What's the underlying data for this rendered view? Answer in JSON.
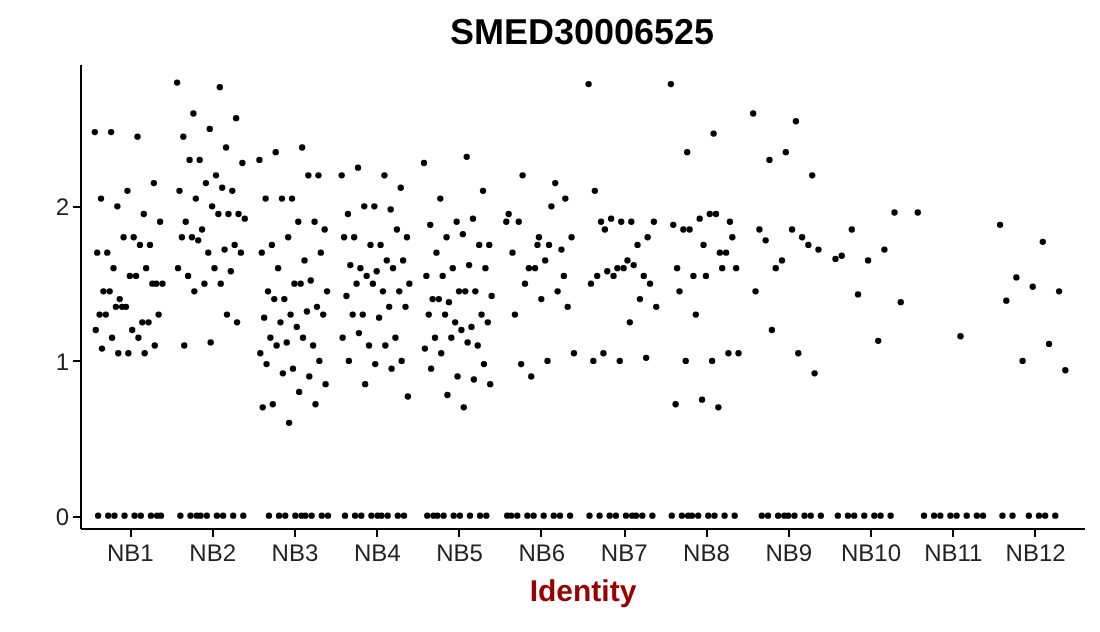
{
  "chart_data": {
    "type": "scatter",
    "title": "SMED30006525",
    "xlabel": "Identity",
    "categories": [
      "NB1",
      "NB2",
      "NB3",
      "NB4",
      "NB5",
      "NB6",
      "NB7",
      "NB8",
      "NB9",
      "NB10",
      "NB11",
      "NB12"
    ],
    "ylim": [
      -0.08,
      2.92
    ],
    "yticks": [
      0,
      1,
      2
    ],
    "marker": "circle",
    "series": [
      {
        "color": "#000000",
        "x": [
          "NB1",
          "NB1",
          "NB1",
          "NB1",
          "NB1",
          "NB1",
          "NB1",
          "NB1",
          "NB1",
          "NB1",
          "NB1",
          "NB1",
          "NB1",
          "NB1",
          "NB1",
          "NB1",
          "NB1",
          "NB1",
          "NB1",
          "NB1",
          "NB1",
          "NB1",
          "NB1",
          "NB1",
          "NB1",
          "NB1",
          "NB1",
          "NB1",
          "NB1",
          "NB1",
          "NB1",
          "NB1",
          "NB1",
          "NB1",
          "NB1",
          "NB1",
          "NB1",
          "NB1",
          "NB1",
          "NB1",
          "NB1",
          "NB1",
          "NB1",
          "NB1",
          "NB1",
          "NB1",
          "NB1",
          "NB1",
          "NB1",
          "NB1",
          "NB1"
        ],
        "values": [
          2.48,
          2.45,
          2.48,
          2.15,
          2.1,
          2.05,
          1.95,
          2.0,
          1.9,
          1.8,
          1.7,
          1.75,
          1.8,
          1.7,
          1.75,
          1.6,
          1.5,
          1.55,
          1.45,
          1.6,
          1.4,
          1.5,
          1.55,
          1.45,
          1.5,
          1.35,
          1.3,
          1.25,
          1.35,
          1.3,
          1.2,
          1.3,
          1.25,
          1.35,
          1.2,
          1.15,
          1.15,
          1.1,
          1.05,
          1.08,
          1.05,
          1.05,
          0,
          0,
          0,
          0,
          0,
          0,
          0,
          0,
          0
        ]
      },
      {
        "color": "#000000",
        "x": [
          "NB2",
          "NB2",
          "NB2",
          "NB2",
          "NB2",
          "NB2",
          "NB2",
          "NB2",
          "NB2",
          "NB2",
          "NB2",
          "NB2",
          "NB2",
          "NB2",
          "NB2",
          "NB2",
          "NB2",
          "NB2",
          "NB2",
          "NB2",
          "NB2",
          "NB2",
          "NB2",
          "NB2",
          "NB2",
          "NB2",
          "NB2",
          "NB2",
          "NB2",
          "NB2",
          "NB2",
          "NB2",
          "NB2",
          "NB2",
          "NB2",
          "NB2",
          "NB2",
          "NB2",
          "NB2",
          "NB2",
          "NB2",
          "NB2",
          "NB2",
          "NB2",
          "NB2",
          "NB2",
          "NB2",
          "NB2",
          "NB2",
          "NB2"
        ],
        "values": [
          2.8,
          2.77,
          2.6,
          2.57,
          2.5,
          2.45,
          2.38,
          2.3,
          2.28,
          2.2,
          2.3,
          2.1,
          2.15,
          2.1,
          2.12,
          2.05,
          1.95,
          2.0,
          1.9,
          1.95,
          1.85,
          1.92,
          1.95,
          1.8,
          1.75,
          1.7,
          1.8,
          1.72,
          1.78,
          1.7,
          1.6,
          1.55,
          1.58,
          1.5,
          1.6,
          1.5,
          1.45,
          1.25,
          1.12,
          1.1,
          1.3,
          0,
          0,
          0,
          0,
          0,
          0,
          0,
          0,
          0
        ]
      },
      {
        "color": "#000000",
        "x": [
          "NB3",
          "NB3",
          "NB3",
          "NB3",
          "NB3",
          "NB3",
          "NB3",
          "NB3",
          "NB3",
          "NB3",
          "NB3",
          "NB3",
          "NB3",
          "NB3",
          "NB3",
          "NB3",
          "NB3",
          "NB3",
          "NB3",
          "NB3",
          "NB3",
          "NB3",
          "NB3",
          "NB3",
          "NB3",
          "NB3",
          "NB3",
          "NB3",
          "NB3",
          "NB3",
          "NB3",
          "NB3",
          "NB3",
          "NB3",
          "NB3",
          "NB3",
          "NB3",
          "NB3",
          "NB3",
          "NB3",
          "NB3",
          "NB3",
          "NB3",
          "NB3",
          "NB3",
          "NB3",
          "NB3",
          "NB3",
          "NB3",
          "NB3",
          "NB3",
          "NB3",
          "NB3",
          "NB3",
          "NB3",
          "NB3",
          "NB3"
        ],
        "values": [
          2.3,
          2.38,
          2.35,
          2.2,
          2.05,
          2.05,
          2.2,
          2.05,
          1.85,
          1.9,
          1.75,
          1.9,
          1.8,
          1.7,
          1.65,
          1.6,
          1.7,
          1.5,
          1.45,
          1.52,
          1.4,
          1.45,
          1.5,
          1.4,
          1.35,
          1.3,
          1.28,
          1.32,
          1.25,
          1.3,
          1.22,
          1.15,
          1.1,
          1.12,
          1.05,
          1.15,
          1.1,
          1.0,
          0.95,
          0.98,
          0.9,
          0.92,
          0.85,
          0.8,
          0.72,
          0.72,
          0.6,
          0.7,
          0,
          0,
          0,
          0,
          0,
          0,
          0,
          0,
          0
        ]
      },
      {
        "color": "#000000",
        "x": [
          "NB4",
          "NB4",
          "NB4",
          "NB4",
          "NB4",
          "NB4",
          "NB4",
          "NB4",
          "NB4",
          "NB4",
          "NB4",
          "NB4",
          "NB4",
          "NB4",
          "NB4",
          "NB4",
          "NB4",
          "NB4",
          "NB4",
          "NB4",
          "NB4",
          "NB4",
          "NB4",
          "NB4",
          "NB4",
          "NB4",
          "NB4",
          "NB4",
          "NB4",
          "NB4",
          "NB4",
          "NB4",
          "NB4",
          "NB4",
          "NB4",
          "NB4",
          "NB4",
          "NB4",
          "NB4",
          "NB4",
          "NB4",
          "NB4",
          "NB4",
          "NB4",
          "NB4",
          "NB4",
          "NB4",
          "NB4",
          "NB4",
          "NB4",
          "NB4",
          "NB4"
        ],
        "values": [
          2.2,
          2.2,
          2.25,
          2.12,
          2.0,
          1.95,
          1.98,
          2.0,
          1.8,
          1.75,
          1.8,
          1.85,
          1.75,
          1.8,
          1.65,
          1.6,
          1.65,
          1.58,
          1.62,
          1.6,
          1.55,
          1.5,
          1.45,
          1.5,
          1.45,
          1.5,
          1.42,
          1.35,
          1.3,
          1.35,
          1.28,
          1.3,
          1.15,
          1.1,
          1.15,
          1.1,
          1.18,
          1.0,
          0.98,
          1.0,
          0.95,
          0.85,
          0.77,
          0,
          0,
          0,
          0,
          0,
          0,
          0,
          0,
          0
        ]
      },
      {
        "color": "#000000",
        "x": [
          "NB5",
          "NB5",
          "NB5",
          "NB5",
          "NB5",
          "NB5",
          "NB5",
          "NB5",
          "NB5",
          "NB5",
          "NB5",
          "NB5",
          "NB5",
          "NB5",
          "NB5",
          "NB5",
          "NB5",
          "NB5",
          "NB5",
          "NB5",
          "NB5",
          "NB5",
          "NB5",
          "NB5",
          "NB5",
          "NB5",
          "NB5",
          "NB5",
          "NB5",
          "NB5",
          "NB5",
          "NB5",
          "NB5",
          "NB5",
          "NB5",
          "NB5",
          "NB5",
          "NB5",
          "NB5",
          "NB5",
          "NB5",
          "NB5",
          "NB5",
          "NB5",
          "NB5",
          "NB5",
          "NB5",
          "NB5",
          "NB5",
          "NB5",
          "NB5",
          "NB5",
          "NB5"
        ],
        "values": [
          2.28,
          2.32,
          2.05,
          2.1,
          1.9,
          1.88,
          1.92,
          1.8,
          1.75,
          1.82,
          1.7,
          1.75,
          1.6,
          1.55,
          1.62,
          1.55,
          1.6,
          1.45,
          1.4,
          1.45,
          1.38,
          1.42,
          1.45,
          1.4,
          1.3,
          1.25,
          1.3,
          1.22,
          1.3,
          1.25,
          1.2,
          1.15,
          1.1,
          1.15,
          1.08,
          1.12,
          1.05,
          0.98,
          0.9,
          0.95,
          0.88,
          0.78,
          0.85,
          0.7,
          0,
          0,
          0,
          0,
          0,
          0,
          0,
          0,
          0
        ]
      },
      {
        "color": "#000000",
        "x": [
          "NB6",
          "NB6",
          "NB6",
          "NB6",
          "NB6",
          "NB6",
          "NB6",
          "NB6",
          "NB6",
          "NB6",
          "NB6",
          "NB6",
          "NB6",
          "NB6",
          "NB6",
          "NB6",
          "NB6",
          "NB6",
          "NB6",
          "NB6",
          "NB6",
          "NB6",
          "NB6",
          "NB6",
          "NB6",
          "NB6",
          "NB6",
          "NB6",
          "NB6",
          "NB6",
          "NB6",
          "NB6",
          "NB6",
          "NB6",
          "NB6"
        ],
        "values": [
          1.9,
          1.75,
          2.2,
          2.05,
          1.8,
          1.7,
          2.15,
          1.6,
          1.8,
          1.65,
          1.9,
          1.72,
          1.6,
          1.95,
          2.0,
          1.5,
          1.35,
          1.4,
          1.3,
          1.45,
          0.9,
          1.05,
          1.0,
          0.98,
          1.55,
          1.75,
          0,
          0,
          0,
          0,
          0,
          0,
          0,
          0,
          0
        ]
      },
      {
        "color": "#000000",
        "x": [
          "NB7",
          "NB7",
          "NB7",
          "NB7",
          "NB7",
          "NB7",
          "NB7",
          "NB7",
          "NB7",
          "NB7",
          "NB7",
          "NB7",
          "NB7",
          "NB7",
          "NB7",
          "NB7",
          "NB7",
          "NB7",
          "NB7",
          "NB7",
          "NB7",
          "NB7",
          "NB7",
          "NB7",
          "NB7",
          "NB7",
          "NB7",
          "NB7",
          "NB7",
          "NB7",
          "NB7",
          "NB7",
          "NB7",
          "NB7",
          "NB7",
          "NB7"
        ],
        "values": [
          2.79,
          1.9,
          1.85,
          1.8,
          1.9,
          2.1,
          1.75,
          1.92,
          1.9,
          1.65,
          1.9,
          1.55,
          1.6,
          1.5,
          1.62,
          1.58,
          1.5,
          1.6,
          1.55,
          1.4,
          1.55,
          1.35,
          1.25,
          1.05,
          1.02,
          1.0,
          1.0,
          0,
          0,
          0,
          0,
          0,
          0,
          0,
          0,
          0
        ]
      },
      {
        "color": "#000000",
        "x": [
          "NB8",
          "NB8",
          "NB8",
          "NB8",
          "NB8",
          "NB8",
          "NB8",
          "NB8",
          "NB8",
          "NB8",
          "NB8",
          "NB8",
          "NB8",
          "NB8",
          "NB8",
          "NB8",
          "NB8",
          "NB8",
          "NB8",
          "NB8",
          "NB8",
          "NB8",
          "NB8",
          "NB8",
          "NB8",
          "NB8",
          "NB8",
          "NB8",
          "NB8",
          "NB8",
          "NB8",
          "NB8",
          "NB8",
          "NB8",
          "NB8",
          "NB8",
          "NB8"
        ],
        "values": [
          2.79,
          2.47,
          2.35,
          1.9,
          1.75,
          1.6,
          1.7,
          1.55,
          1.6,
          1.95,
          1.85,
          1.7,
          1.92,
          1.88,
          1.95,
          1.85,
          1.8,
          1.55,
          1.45,
          1.6,
          1.3,
          1.05,
          1.0,
          1.0,
          1.05,
          0.75,
          0.72,
          0.7,
          0,
          0,
          0,
          0,
          0,
          0,
          0,
          0,
          0
        ]
      },
      {
        "color": "#000000",
        "x": [
          "NB9",
          "NB9",
          "NB9",
          "NB9",
          "NB9",
          "NB9",
          "NB9",
          "NB9",
          "NB9",
          "NB9",
          "NB9",
          "NB9",
          "NB9",
          "NB9",
          "NB9",
          "NB9",
          "NB9",
          "NB9",
          "NB9",
          "NB9",
          "NB9",
          "NB9",
          "NB9",
          "NB9",
          "NB9",
          "NB9"
        ],
        "values": [
          2.6,
          2.55,
          2.3,
          2.2,
          2.35,
          1.85,
          1.8,
          1.6,
          1.72,
          1.85,
          1.78,
          1.75,
          1.65,
          1.45,
          1.05,
          1.2,
          0.92,
          0,
          0,
          0,
          0,
          0,
          0,
          0,
          0,
          0
        ]
      },
      {
        "color": "#000000",
        "x": [
          "NB10",
          "NB10",
          "NB10",
          "NB10",
          "NB10",
          "NB10",
          "NB10",
          "NB10",
          "NB10",
          "NB10",
          "NB10",
          "NB10",
          "NB10",
          "NB10",
          "NB10",
          "NB10"
        ],
        "values": [
          1.66,
          1.13,
          1.85,
          1.96,
          1.65,
          1.68,
          1.72,
          1.43,
          1.38,
          0,
          0,
          0,
          0,
          0,
          0,
          0
        ]
      },
      {
        "color": "#000000",
        "x": [
          "NB11",
          "NB11",
          "NB11",
          "NB11",
          "NB11",
          "NB11",
          "NB11",
          "NB11",
          "NB11",
          "NB11"
        ],
        "values": [
          1.96,
          1.16,
          0,
          0,
          0,
          0,
          0,
          0,
          0,
          0
        ]
      },
      {
        "color": "#000000",
        "x": [
          "NB12",
          "NB12",
          "NB12",
          "NB12",
          "NB12",
          "NB12",
          "NB12",
          "NB12",
          "NB12",
          "NB12",
          "NB12",
          "NB12",
          "NB12",
          "NB12",
          "NB12"
        ],
        "values": [
          1.88,
          1.77,
          1.54,
          1.45,
          1.48,
          1.39,
          1.11,
          1.0,
          0.94,
          0,
          0,
          0,
          0,
          0,
          0
        ]
      }
    ]
  }
}
